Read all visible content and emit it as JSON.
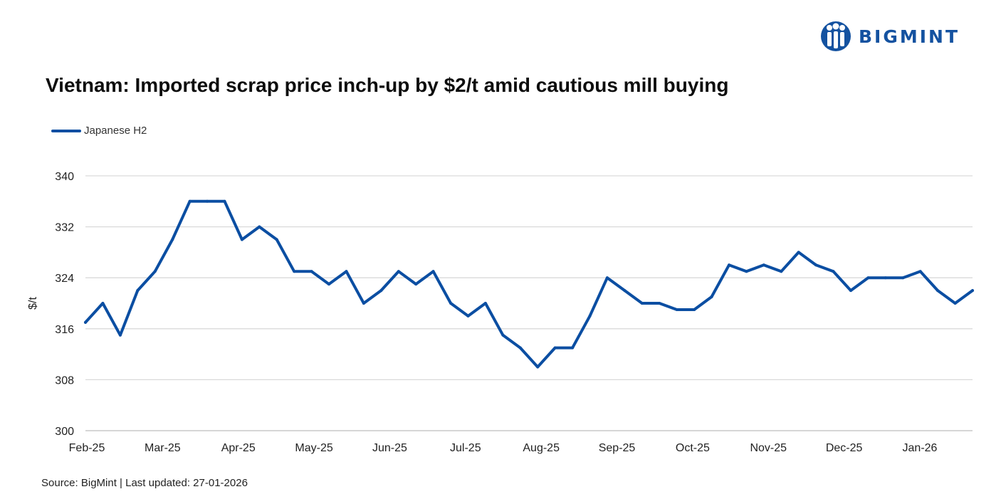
{
  "brand": {
    "name": "BIGMINT",
    "color": "#1452a0"
  },
  "title": "Vietnam: Imported scrap price inch-up by $2/t amid cautious mill buying",
  "source": "Source: BigMint | Last updated: 27-01-2026",
  "chart_data": {
    "type": "line",
    "title": "Vietnam: Imported scrap price inch-up by $2/t amid cautious mill buying",
    "ylabel": "$/t",
    "xlabel": "",
    "ylim": [
      300,
      340
    ],
    "yticks": [
      300,
      308,
      316,
      324,
      332,
      340
    ],
    "grid": "horizontal",
    "legend_position": "top-left",
    "month_labels": [
      "Feb-25",
      "Mar-25",
      "Apr-25",
      "May-25",
      "Jun-25",
      "Jul-25",
      "Aug-25",
      "Sep-25",
      "Oct-25",
      "Nov-25",
      "Dec-25",
      "Jan-26"
    ],
    "x": [
      "2025-02-01",
      "2025-02-08",
      "2025-02-15",
      "2025-02-22",
      "2025-03-01",
      "2025-03-08",
      "2025-03-15",
      "2025-03-22",
      "2025-03-29",
      "2025-04-05",
      "2025-04-12",
      "2025-04-19",
      "2025-04-26",
      "2025-05-03",
      "2025-05-10",
      "2025-05-17",
      "2025-05-24",
      "2025-05-31",
      "2025-06-07",
      "2025-06-14",
      "2025-06-21",
      "2025-06-28",
      "2025-07-05",
      "2025-07-12",
      "2025-07-19",
      "2025-07-26",
      "2025-08-02",
      "2025-08-09",
      "2025-08-16",
      "2025-08-23",
      "2025-08-30",
      "2025-09-06",
      "2025-09-13",
      "2025-09-20",
      "2025-09-27",
      "2025-10-04",
      "2025-10-11",
      "2025-10-18",
      "2025-10-25",
      "2025-11-01",
      "2025-11-08",
      "2025-11-15",
      "2025-11-22",
      "2025-11-29",
      "2025-12-06",
      "2025-12-13",
      "2025-12-20",
      "2025-12-27",
      "2026-01-03",
      "2026-01-10",
      "2026-01-17",
      "2026-01-24"
    ],
    "series": [
      {
        "name": "Japanese H2",
        "color": "#0b4ea2",
        "values": [
          317,
          320,
          315,
          322,
          325,
          330,
          336,
          336,
          336,
          330,
          332,
          330,
          325,
          325,
          323,
          325,
          320,
          322,
          325,
          323,
          325,
          320,
          318,
          320,
          315,
          313,
          310,
          313,
          313,
          318,
          324,
          322,
          320,
          320,
          319,
          319,
          321,
          326,
          325,
          326,
          325,
          328,
          326,
          325,
          322,
          324,
          324,
          324,
          325,
          322,
          320,
          322
        ]
      }
    ]
  }
}
